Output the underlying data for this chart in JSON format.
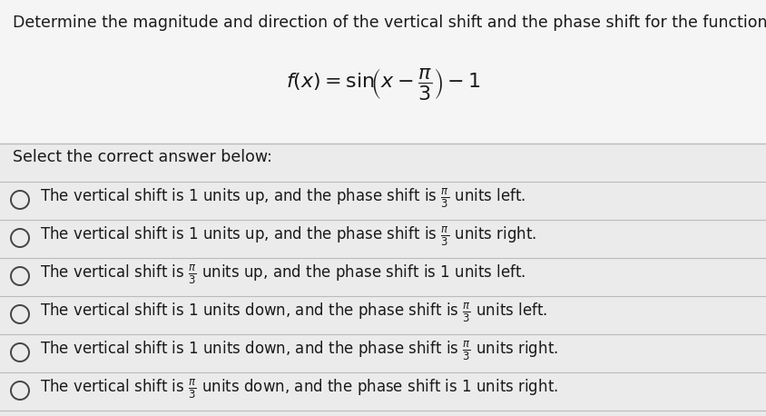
{
  "background_color": "#e8e8e8",
  "top_section_color": "#f5f5f5",
  "bottom_section_color": "#ebebeb",
  "header_text": "Determine the magnitude and direction of the vertical shift and the phase shift for the function below.",
  "select_text": "Select the correct answer below:",
  "font_color": "#1a1a1a",
  "line_color": "#bbbbbb",
  "circle_color": "#444444",
  "header_fontsize": 12.5,
  "option_fontsize": 12.0,
  "select_fontsize": 12.5,
  "func_fontsize": 16
}
